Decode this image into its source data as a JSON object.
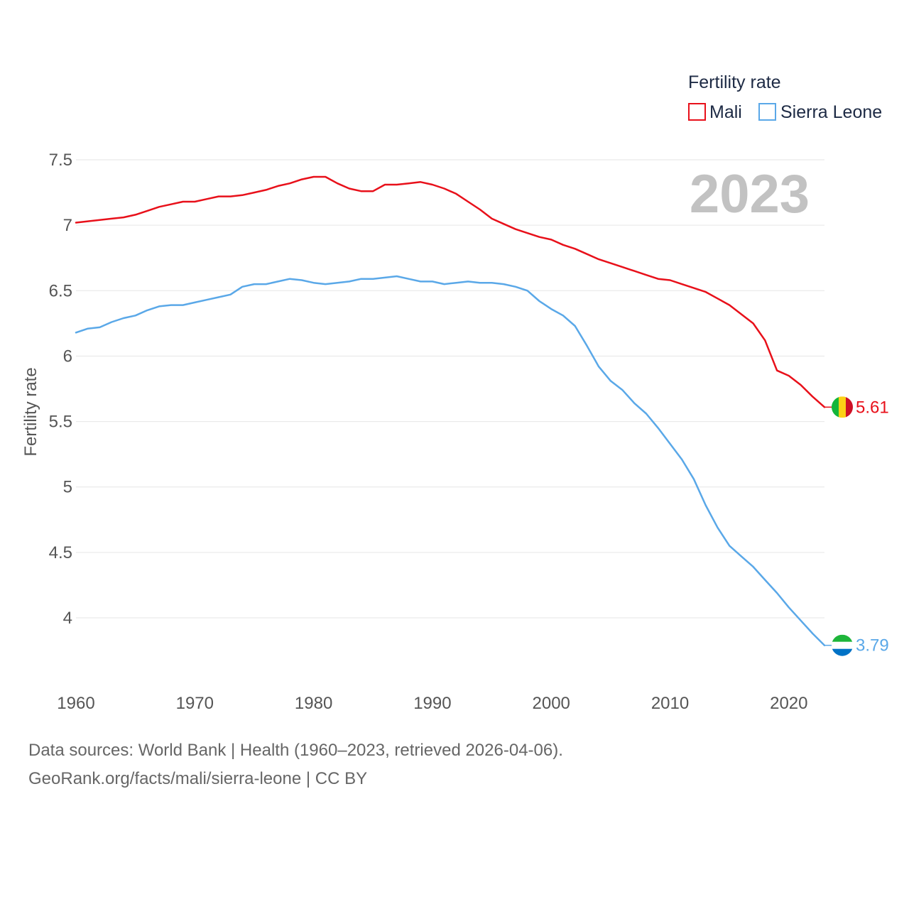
{
  "chart_data": {
    "type": "line",
    "title": "",
    "year_display": "2023",
    "legend": {
      "title": "Fertility rate",
      "position": "top-right"
    },
    "xlabel": "",
    "ylabel": "Fertility rate",
    "xlim": [
      1960,
      2023
    ],
    "ylim": [
      3.6,
      7.6
    ],
    "xticks": [
      "1960",
      "1970",
      "1980",
      "1990",
      "2000",
      "2010",
      "2020"
    ],
    "yticks": [
      "7.5",
      "7",
      "6.5",
      "6",
      "5.5",
      "5",
      "4.5",
      "4"
    ],
    "grid": true,
    "x": [
      1960,
      1961,
      1962,
      1963,
      1964,
      1965,
      1966,
      1967,
      1968,
      1969,
      1970,
      1971,
      1972,
      1973,
      1974,
      1975,
      1976,
      1977,
      1978,
      1979,
      1980,
      1981,
      1982,
      1983,
      1984,
      1985,
      1986,
      1987,
      1988,
      1989,
      1990,
      1991,
      1992,
      1993,
      1994,
      1995,
      1996,
      1997,
      1998,
      1999,
      2000,
      2001,
      2002,
      2003,
      2004,
      2005,
      2006,
      2007,
      2008,
      2009,
      2010,
      2011,
      2012,
      2013,
      2014,
      2015,
      2016,
      2017,
      2018,
      2019,
      2020,
      2021,
      2022,
      2023
    ],
    "series": [
      {
        "name": "Mali",
        "color": "#e8101a",
        "end_label": "5.61",
        "flag_colors": [
          "#14b53a",
          "#fcd116",
          "#ce1126"
        ],
        "values": [
          7.02,
          7.03,
          7.04,
          7.05,
          7.06,
          7.08,
          7.11,
          7.14,
          7.16,
          7.18,
          7.18,
          7.2,
          7.22,
          7.22,
          7.23,
          7.25,
          7.27,
          7.3,
          7.32,
          7.35,
          7.37,
          7.37,
          7.32,
          7.28,
          7.26,
          7.26,
          7.31,
          7.31,
          7.32,
          7.33,
          7.31,
          7.28,
          7.24,
          7.18,
          7.12,
          7.05,
          7.01,
          6.97,
          6.94,
          6.91,
          6.89,
          6.85,
          6.82,
          6.78,
          6.74,
          6.71,
          6.68,
          6.65,
          6.62,
          6.59,
          6.58,
          6.55,
          6.52,
          6.49,
          6.44,
          6.39,
          6.32,
          6.25,
          6.12,
          5.89,
          5.85,
          5.78,
          5.69,
          5.61
        ]
      },
      {
        "name": "Sierra Leone",
        "color": "#5aa8e8",
        "end_label": "3.79",
        "flag_colors": [
          "#1eb53a",
          "#ffffff",
          "#0072c6"
        ],
        "values": [
          6.18,
          6.21,
          6.22,
          6.26,
          6.29,
          6.31,
          6.35,
          6.38,
          6.39,
          6.39,
          6.41,
          6.43,
          6.45,
          6.47,
          6.53,
          6.55,
          6.55,
          6.57,
          6.59,
          6.58,
          6.56,
          6.55,
          6.56,
          6.57,
          6.59,
          6.59,
          6.6,
          6.61,
          6.59,
          6.57,
          6.57,
          6.55,
          6.56,
          6.57,
          6.56,
          6.56,
          6.55,
          6.53,
          6.5,
          6.42,
          6.36,
          6.31,
          6.23,
          6.08,
          5.92,
          5.81,
          5.74,
          5.64,
          5.56,
          5.45,
          5.33,
          5.21,
          5.06,
          4.86,
          4.69,
          4.55,
          4.47,
          4.39,
          4.29,
          4.19,
          4.08,
          3.98,
          3.88,
          3.79
        ]
      }
    ]
  },
  "footer": {
    "line1": "Data sources: World Bank | Health (1960–2023, retrieved 2026-04-06).",
    "line2": "GeoRank.org/facts/mali/sierra-leone | CC BY"
  }
}
